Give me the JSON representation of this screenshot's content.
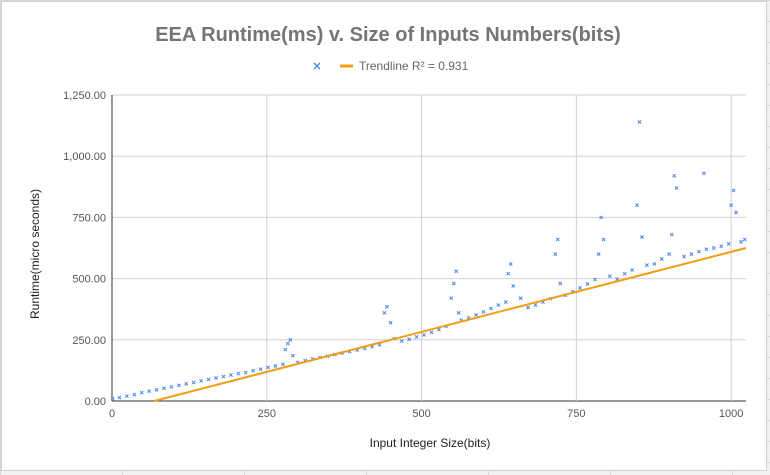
{
  "chart_data": {
    "type": "scatter",
    "title": "EEA Runtime(ms) v. Size of Inputs Numbers(bits)",
    "xlabel": "Input Integer Size(bits)",
    "ylabel": "Runtime(micro seconds)",
    "xlim": [
      0,
      1024
    ],
    "ylim": [
      0,
      1250
    ],
    "x_ticks": [
      0,
      250,
      500,
      750,
      1000
    ],
    "x_tick_labels": [
      "0",
      "250",
      "500",
      "750",
      "1000"
    ],
    "y_ticks": [
      0,
      250,
      500,
      750,
      1000,
      1250
    ],
    "y_tick_labels": [
      "0.00",
      "250.00",
      "500.00",
      "750.00",
      "1,000.00",
      "1,250.00"
    ],
    "grid": true,
    "legend_position": "top",
    "series": [
      {
        "marker": "x",
        "color": "#4a86e8",
        "x": [
          1,
          12,
          24,
          36,
          48,
          60,
          72,
          84,
          96,
          108,
          120,
          132,
          144,
          156,
          168,
          180,
          192,
          204,
          216,
          228,
          240,
          252,
          264,
          276,
          280,
          284,
          288,
          292,
          300,
          312,
          324,
          336,
          348,
          360,
          372,
          384,
          396,
          408,
          420,
          432,
          440,
          444,
          450,
          456,
          468,
          480,
          492,
          504,
          516,
          528,
          540,
          548,
          552,
          556,
          560,
          564,
          576,
          588,
          600,
          612,
          624,
          636,
          640,
          644,
          648,
          660,
          672,
          684,
          696,
          708,
          716,
          720,
          724,
          732,
          744,
          756,
          768,
          780,
          786,
          790,
          794,
          804,
          816,
          828,
          840,
          848,
          852,
          856,
          864,
          876,
          888,
          900,
          904,
          908,
          912,
          924,
          936,
          948,
          956,
          960,
          972,
          984,
          996,
          1000,
          1004,
          1008,
          1016,
          1022
        ],
        "y": [
          10,
          14,
          20,
          26,
          34,
          40,
          46,
          52,
          58,
          64,
          70,
          76,
          82,
          88,
          94,
          100,
          106,
          112,
          116,
          124,
          130,
          137,
          143,
          150,
          210,
          235,
          250,
          185,
          158,
          165,
          172,
          178,
          183,
          190,
          196,
          202,
          208,
          215,
          222,
          230,
          360,
          385,
          320,
          255,
          245,
          252,
          262,
          270,
          280,
          292,
          305,
          420,
          480,
          530,
          360,
          330,
          340,
          352,
          364,
          378,
          392,
          404,
          520,
          560,
          470,
          420,
          382,
          392,
          404,
          418,
          600,
          660,
          480,
          432,
          446,
          462,
          478,
          496,
          600,
          750,
          660,
          510,
          498,
          520,
          535,
          800,
          1140,
          670,
          555,
          560,
          580,
          600,
          680,
          920,
          870,
          590,
          600,
          610,
          930,
          620,
          625,
          632,
          642,
          800,
          860,
          770,
          650,
          660
        ]
      },
      {
        "name": "Trendline R² = 0.931",
        "color": "#f29d14",
        "type": "line",
        "x": [
          68,
          1024
        ],
        "y": [
          0,
          625
        ]
      }
    ]
  }
}
